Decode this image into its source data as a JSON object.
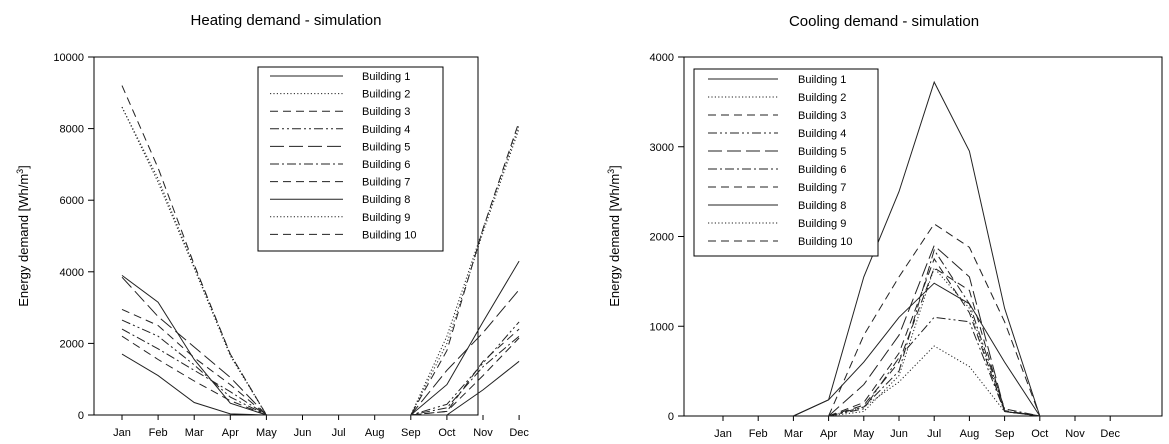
{
  "months": [
    "Jan",
    "Feb",
    "Mar",
    "Apr",
    "May",
    "Jun",
    "Jul",
    "Aug",
    "Sep",
    "Oct",
    "Nov",
    "Dec"
  ],
  "chart_data": [
    {
      "type": "line",
      "title": "Heating demand - simulation",
      "xlabel": "",
      "ylabel": "Energy demand [Wh/m",
      "ylabel_sup": "3",
      "ylabel_close": "]",
      "ylim": [
        0,
        10000
      ],
      "yticks": [
        0,
        2000,
        4000,
        6000,
        8000,
        10000
      ],
      "ytick_labels": [
        "0",
        "2000",
        "4000",
        "6000",
        "8000",
        "10000"
      ],
      "categories": [
        "Jan",
        "Feb",
        "Mar",
        "Apr",
        "May",
        "Jun",
        "Jul",
        "Aug",
        "Sep",
        "Oct",
        "Nov",
        "Dec"
      ],
      "legend": "top-center",
      "grid": false,
      "series": [
        {
          "name": "Building 1",
          "dash": "solid",
          "values": [
            3900,
            3150,
            1550,
            330,
            0,
            null,
            null,
            null,
            0,
            850,
            2600,
            4300
          ]
        },
        {
          "name": "Building 2",
          "dash": "dot",
          "values": [
            8600,
            6500,
            4100,
            1650,
            0,
            null,
            null,
            null,
            0,
            2200,
            5200,
            8100
          ]
        },
        {
          "name": "Building 3",
          "dash": "dash",
          "values": [
            2950,
            2500,
            1600,
            850,
            0,
            null,
            null,
            null,
            0,
            100,
            1500,
            2400
          ]
        },
        {
          "name": "Building 4",
          "dash": "dashdotdot",
          "values": [
            2650,
            2200,
            1400,
            500,
            0,
            null,
            null,
            null,
            0,
            300,
            1450,
            2600
          ]
        },
        {
          "name": "Building 5",
          "dash": "longdash",
          "values": [
            3850,
            2750,
            1900,
            1050,
            0,
            null,
            null,
            null,
            0,
            1250,
            2300,
            3500
          ]
        },
        {
          "name": "Building 6",
          "dash": "dashdot",
          "values": [
            2400,
            1850,
            1250,
            650,
            0,
            null,
            null,
            null,
            0,
            200,
            1350,
            2200
          ]
        },
        {
          "name": "Building 7",
          "dash": "dash",
          "values": [
            2200,
            1550,
            950,
            400,
            0,
            null,
            null,
            null,
            0,
            100,
            1100,
            2150
          ]
        },
        {
          "name": "Building 8",
          "dash": "solid",
          "values": [
            1700,
            1100,
            350,
            30,
            0,
            null,
            null,
            null,
            0,
            0,
            700,
            1500
          ]
        },
        {
          "name": "Building 9",
          "dash": "dot",
          "values": [
            8600,
            6600,
            4150,
            1700,
            0,
            null,
            null,
            null,
            0,
            2000,
            5100,
            8000
          ]
        },
        {
          "name": "Building 10",
          "dash": "dash",
          "values": [
            9200,
            6900,
            4200,
            1700,
            0,
            null,
            null,
            null,
            0,
            1800,
            5200,
            8200
          ]
        }
      ]
    },
    {
      "type": "line",
      "title": "Cooling demand - simulation",
      "xlabel": "",
      "ylabel": "Energy demand [Wh/m",
      "ylabel_sup": "3",
      "ylabel_close": "]",
      "ylim": [
        0,
        4000
      ],
      "yticks": [
        0,
        1000,
        2000,
        3000,
        4000
      ],
      "ytick_labels": [
        "0",
        "1000",
        "2000",
        "3000",
        "4000"
      ],
      "categories": [
        "Jan",
        "Feb",
        "Mar",
        "Apr",
        "May",
        "Jun",
        "Jul",
        "Aug",
        "Sep",
        "Oct",
        "Nov",
        "Dec"
      ],
      "legend": "top-left",
      "grid": false,
      "series": [
        {
          "name": "Building 1",
          "dash": "solid",
          "values": [
            null,
            null,
            0,
            180,
            1550,
            2500,
            3720,
            2950,
            1200,
            0,
            null,
            null
          ]
        },
        {
          "name": "Building 2",
          "dash": "dot",
          "values": [
            null,
            null,
            null,
            0,
            100,
            380,
            780,
            550,
            50,
            0,
            null,
            null
          ]
        },
        {
          "name": "Building 3",
          "dash": "dash",
          "values": [
            null,
            null,
            null,
            0,
            120,
            600,
            1650,
            1400,
            50,
            0,
            null,
            null
          ]
        },
        {
          "name": "Building 4",
          "dash": "dashdotdot",
          "values": [
            null,
            null,
            null,
            0,
            80,
            650,
            1100,
            1050,
            50,
            0,
            null,
            null
          ]
        },
        {
          "name": "Building 5",
          "dash": "longdash",
          "values": [
            null,
            null,
            null,
            0,
            350,
            900,
            1900,
            1550,
            60,
            0,
            null,
            null
          ]
        },
        {
          "name": "Building 6",
          "dash": "dashdot",
          "values": [
            null,
            null,
            null,
            0,
            100,
            500,
            1850,
            1250,
            80,
            0,
            null,
            null
          ]
        },
        {
          "name": "Building 7",
          "dash": "dash",
          "values": [
            null,
            null,
            null,
            0,
            150,
            700,
            1750,
            1150,
            50,
            0,
            null,
            null
          ]
        },
        {
          "name": "Building 8",
          "dash": "solid",
          "values": [
            null,
            null,
            0,
            180,
            600,
            1100,
            1480,
            1250,
            600,
            0,
            null,
            null
          ]
        },
        {
          "name": "Building 9",
          "dash": "dot",
          "values": [
            null,
            null,
            null,
            0,
            50,
            450,
            1650,
            1200,
            50,
            0,
            null,
            null
          ]
        },
        {
          "name": "Building 10",
          "dash": "dash",
          "values": [
            null,
            null,
            null,
            0,
            900,
            1550,
            2140,
            1880,
            1050,
            0,
            null,
            null
          ]
        }
      ]
    }
  ]
}
